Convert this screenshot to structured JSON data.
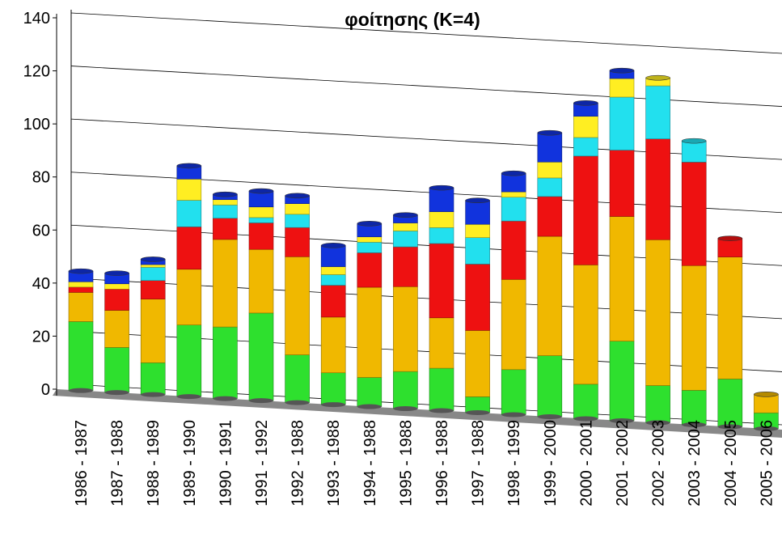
{
  "chart_data": {
    "type": "bar",
    "stacked": true,
    "title": "φοίτησης  (K=4)",
    "categories": [
      "1986 - 1987",
      "1987 - 1988",
      "1988 - 1989",
      "1989 - 1990",
      "1990 - 1991",
      "1991 - 1992",
      "1992 - 1988",
      "1993 - 1988",
      "1994 - 1988",
      "1995 - 1988",
      "1996 - 1988",
      "1997 - 1988",
      "1998 - 1999",
      "1999 - 2000",
      "2000 - 2001",
      "2001 - 2002",
      "2002 - 2003",
      "2003 - 2004",
      "2004 - 2005",
      "2005 - 2006"
    ],
    "series": [
      {
        "color": "#2ee02e",
        "values": [
          26,
          17,
          12,
          27,
          27,
          33,
          18,
          12,
          11,
          14,
          16,
          6,
          17,
          23,
          13,
          30,
          14,
          13,
          18,
          6
        ]
      },
      {
        "color": "#f0b800",
        "values": [
          11,
          14,
          24,
          21,
          33,
          24,
          37,
          21,
          34,
          32,
          19,
          25,
          34,
          45,
          45,
          47,
          55,
          47,
          46,
          7
        ]
      },
      {
        "color": "#ee1111",
        "values": [
          2,
          8,
          7,
          16,
          8,
          10,
          11,
          12,
          13,
          15,
          28,
          25,
          22,
          15,
          41,
          25,
          38,
          39,
          7,
          0
        ]
      },
      {
        "color": "#22e0ee",
        "values": [
          0,
          0,
          5,
          10,
          5,
          2,
          5,
          4,
          4,
          6,
          6,
          10,
          9,
          7,
          7,
          20,
          20,
          8,
          0,
          0
        ]
      },
      {
        "color": "#ffee22",
        "values": [
          2,
          2,
          1,
          8,
          2,
          4,
          4,
          3,
          2,
          3,
          6,
          5,
          2,
          6,
          8,
          7,
          3,
          0,
          0,
          0
        ]
      },
      {
        "color": "#1133dd",
        "values": [
          4,
          4,
          2,
          5,
          2,
          6,
          3,
          8,
          5,
          3,
          9,
          9,
          7,
          11,
          5,
          3,
          0,
          0,
          0,
          0
        ]
      }
    ],
    "ylim": [
      0,
      140
    ],
    "yticks": [
      0,
      20,
      40,
      60,
      80,
      100,
      120,
      140
    ],
    "grid": true
  }
}
